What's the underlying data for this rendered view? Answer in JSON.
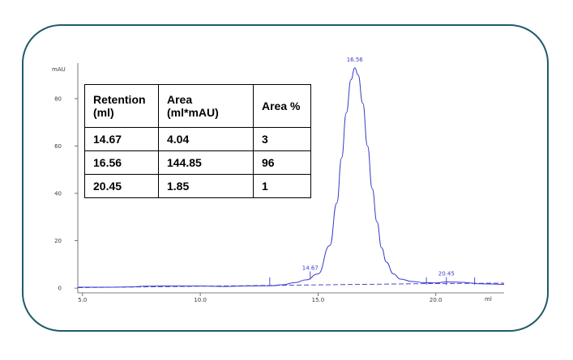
{
  "chart_data": {
    "type": "line",
    "ylabel": "mAU",
    "xunit": "ml",
    "xlim": [
      4.8,
      22.9
    ],
    "ylim": [
      -2,
      95
    ],
    "x_ticks": [
      5.0,
      10.0,
      15.0,
      20.0
    ],
    "x_tick_labels": [
      "5.0",
      "10.0",
      "15.0",
      "20.0"
    ],
    "y_ticks": [
      0,
      20,
      40,
      60,
      80
    ],
    "y_tick_labels": [
      "0",
      "20",
      "40",
      "60",
      "80"
    ],
    "series": [
      {
        "values": [
          [
            4.8,
            0.4
          ],
          [
            6.0,
            0.4
          ],
          [
            7.0,
            0.5
          ],
          [
            7.7,
            0.8
          ],
          [
            8.5,
            0.9
          ],
          [
            10.0,
            0.9
          ],
          [
            11.0,
            0.7
          ],
          [
            12.0,
            0.9
          ],
          [
            13.0,
            1.0
          ],
          [
            13.5,
            1.4
          ],
          [
            14.0,
            2.3
          ],
          [
            14.5,
            3.5
          ],
          [
            15.0,
            6.0
          ],
          [
            15.5,
            18.0
          ],
          [
            15.8,
            36.0
          ],
          [
            16.0,
            55.0
          ],
          [
            16.2,
            74.0
          ],
          [
            16.4,
            88.0
          ],
          [
            16.56,
            93.0
          ],
          [
            16.7,
            90.0
          ],
          [
            16.9,
            78.0
          ],
          [
            17.1,
            60.0
          ],
          [
            17.3,
            42.0
          ],
          [
            17.5,
            28.0
          ],
          [
            17.7,
            17.0
          ],
          [
            17.9,
            11.0
          ],
          [
            18.2,
            6.0
          ],
          [
            18.5,
            3.8
          ],
          [
            19.0,
            2.8
          ],
          [
            19.5,
            2.3
          ],
          [
            20.0,
            2.2
          ],
          [
            20.45,
            2.6
          ],
          [
            21.0,
            2.5
          ],
          [
            22.0,
            1.8
          ],
          [
            22.9,
            1.6
          ]
        ],
        "color": "#3a3acc"
      }
    ],
    "baseline": {
      "values": [
        [
          4.8,
          0.2
        ],
        [
          19.6,
          1.9
        ],
        [
          22.9,
          2.1
        ]
      ],
      "color": "#3a3acc",
      "style": "dashed"
    },
    "marker_ticks": [
      12.95,
      19.6,
      21.65
    ],
    "peaks": [
      {
        "x": 14.67,
        "y": 5.0,
        "label": "14.67"
      },
      {
        "x": 16.56,
        "y": 93.0,
        "label": "16.56"
      },
      {
        "x": 20.45,
        "y": 2.6,
        "label": "20.45"
      }
    ]
  },
  "table": {
    "headers": [
      "Retention (ml)",
      "Area (ml*mAU)",
      "Area %"
    ],
    "rows": [
      [
        "14.67",
        "4.04",
        "3"
      ],
      [
        "16.56",
        "144.85",
        "96"
      ],
      [
        "20.45",
        "1.85",
        "1"
      ]
    ]
  }
}
